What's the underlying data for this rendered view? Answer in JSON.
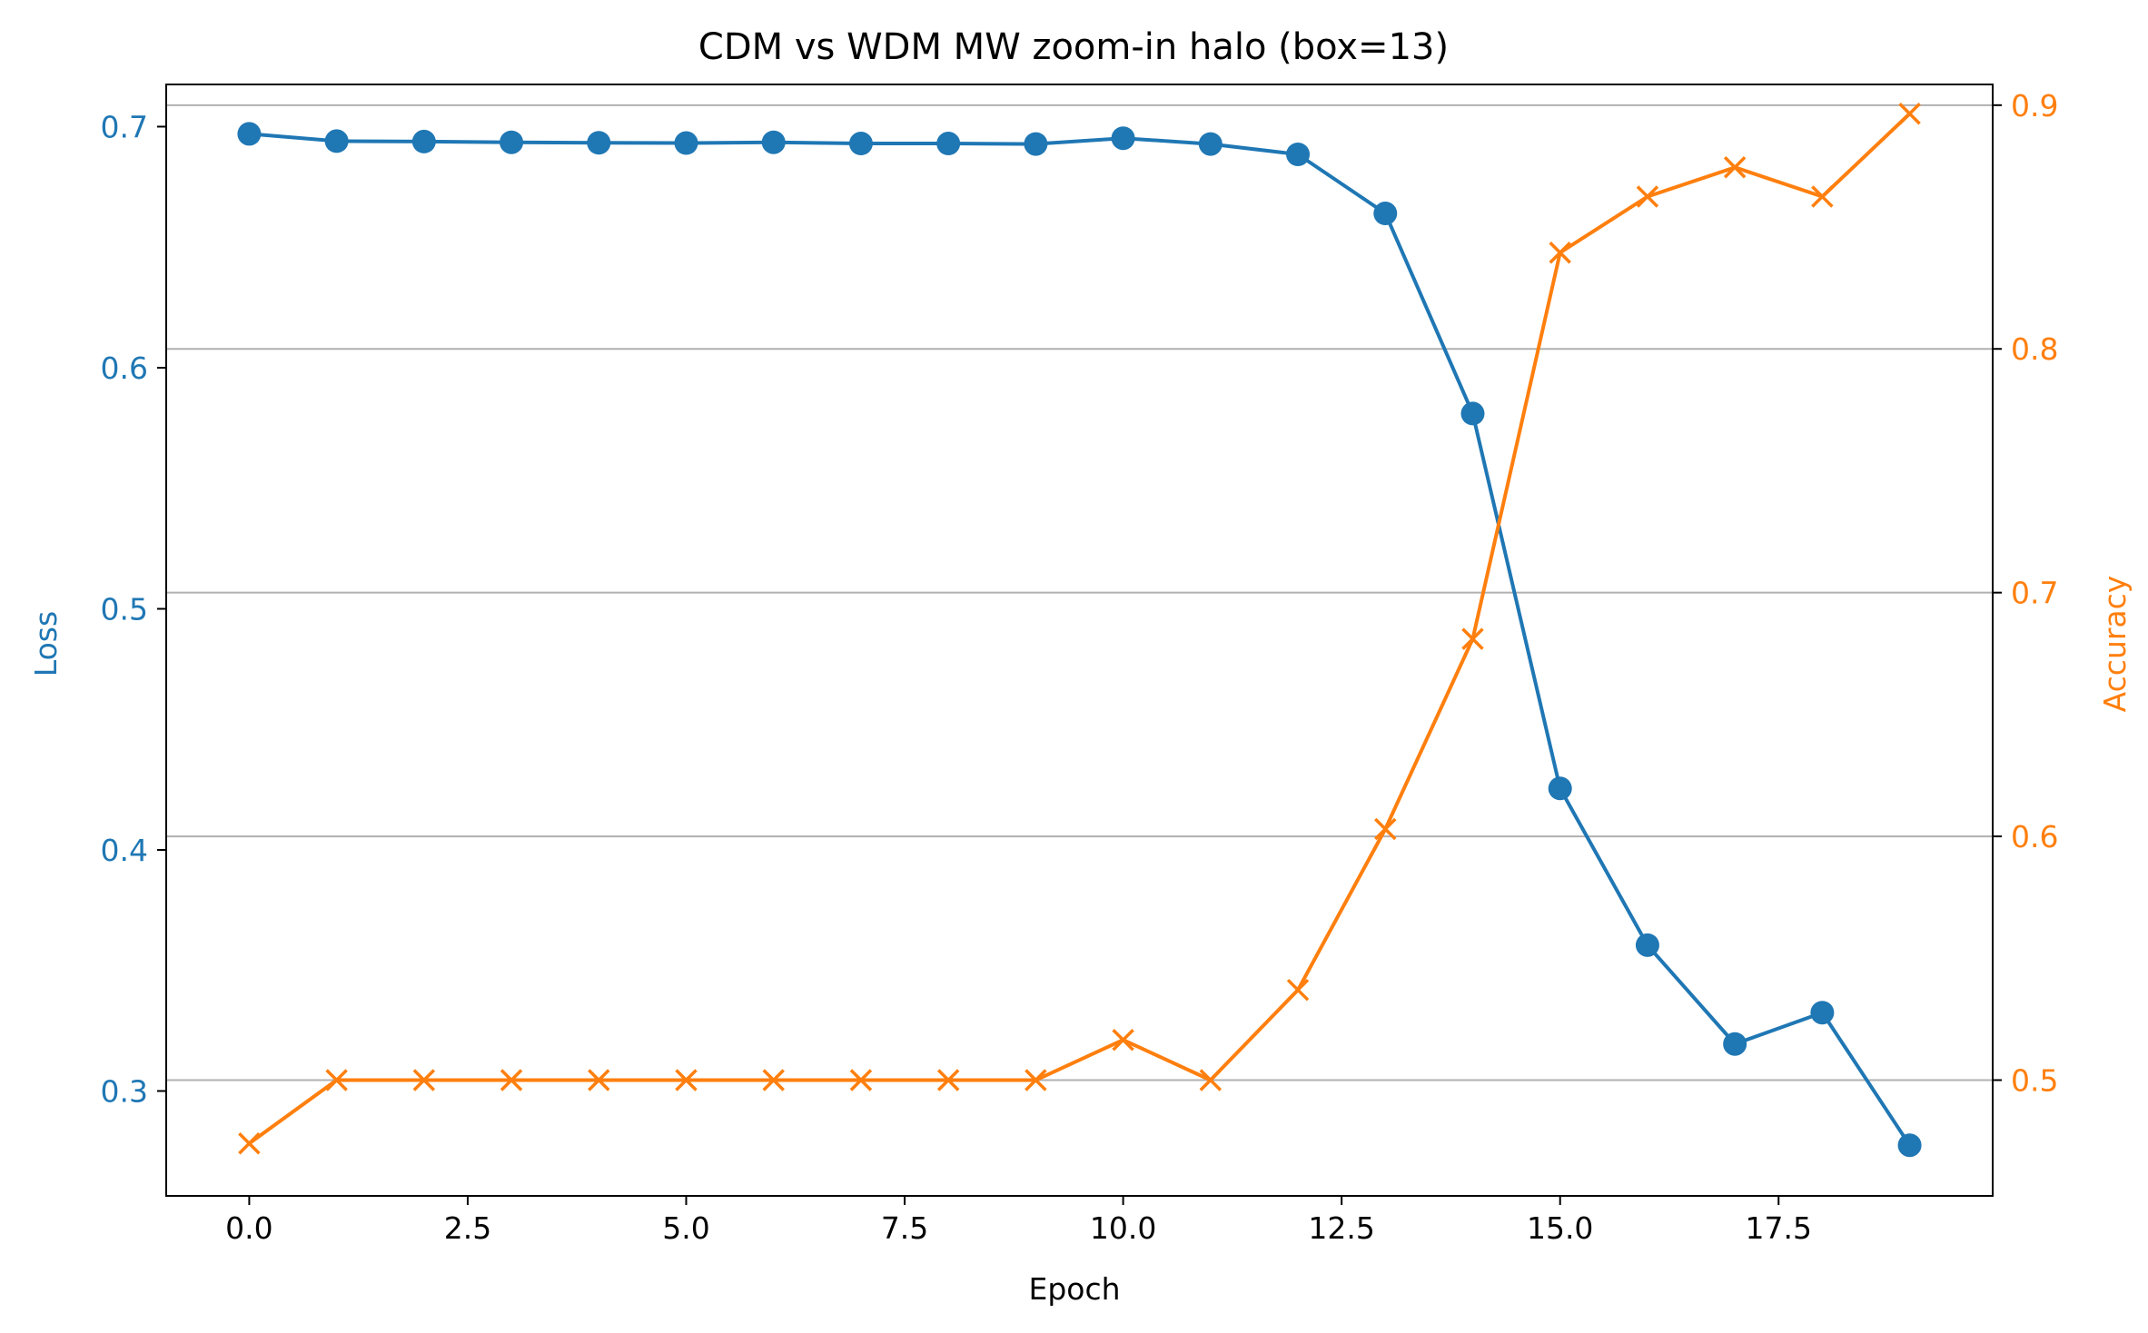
{
  "chart_data": {
    "type": "line",
    "title": "CDM vs WDM MW zoom-in halo (box=13)",
    "xlabel": "Epoch",
    "xlim": [
      -0.95,
      19.95
    ],
    "xticks": [
      0.0,
      2.5,
      5.0,
      7.5,
      10.0,
      12.5,
      15.0,
      17.5
    ],
    "xtick_labels": [
      "0.0",
      "2.5",
      "5.0",
      "7.5",
      "10.0",
      "12.5",
      "15.0",
      "17.5"
    ],
    "x": [
      0,
      1,
      2,
      3,
      4,
      5,
      6,
      7,
      8,
      9,
      10,
      11,
      12,
      13,
      14,
      15,
      16,
      17,
      18,
      19
    ],
    "grid": "horizontal (right axis)",
    "legend": "none",
    "axes": {
      "left": {
        "label": "Loss",
        "color": "#1f77b4",
        "ylim": [
          0.2565,
          0.7175
        ],
        "ticks": [
          0.3,
          0.4,
          0.5,
          0.6,
          0.7
        ],
        "tick_labels": [
          "0.3",
          "0.4",
          "0.5",
          "0.6",
          "0.7"
        ]
      },
      "right": {
        "label": "Accuracy",
        "color": "#ff7f0e",
        "ylim": [
          0.4525,
          0.9085
        ],
        "ticks": [
          0.5,
          0.6,
          0.7,
          0.8,
          0.9
        ],
        "tick_labels": [
          "0.5",
          "0.6",
          "0.7",
          "0.8",
          "0.9"
        ]
      }
    },
    "series": [
      {
        "axis": "left",
        "marker": "circle",
        "color": "#1f77b4",
        "values": [
          0.697,
          0.694,
          0.6938,
          0.6935,
          0.6933,
          0.6932,
          0.6935,
          0.693,
          0.693,
          0.6928,
          0.6952,
          0.6928,
          0.6885,
          0.664,
          0.581,
          0.4255,
          0.3605,
          0.3195,
          0.3325,
          0.2775
        ]
      },
      {
        "axis": "right",
        "marker": "x",
        "color": "#ff7f0e",
        "values": [
          0.474,
          0.5,
          0.5,
          0.5,
          0.5,
          0.5,
          0.5,
          0.5,
          0.5,
          0.5,
          0.5165,
          0.5,
          0.537,
          0.603,
          0.681,
          0.8395,
          0.8625,
          0.8745,
          0.8625,
          0.8965
        ]
      }
    ]
  }
}
